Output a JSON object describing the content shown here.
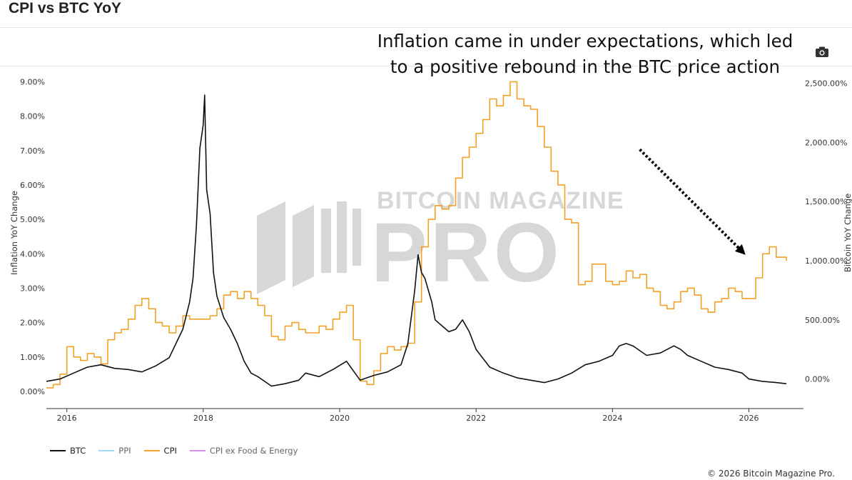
{
  "header": {
    "title": "CPI vs BTC YoY"
  },
  "annotation": {
    "line1": "Inflation came in under expectations, which led",
    "line2": "to a positive rebound in the BTC price action"
  },
  "toolbar": {
    "camera_icon": "camera-icon"
  },
  "watermark": {
    "top": "BITCOIN MAGAZINE",
    "main": "PRO"
  },
  "legend": [
    {
      "name": "BTC",
      "color": "#111111"
    },
    {
      "name": "PPI",
      "color": "#9fd8ef"
    },
    {
      "name": "CPI",
      "color": "#f2a128"
    },
    {
      "name": "CPI ex Food & Energy",
      "color": "#d48ee8"
    }
  ],
  "footer": {
    "copyright": "© 2026 Bitcoin Magazine Pro."
  },
  "chart_data": {
    "type": "line",
    "title": "CPI vs BTC YoY",
    "xlabel": "",
    "ylabel_left": "Inflation YoY Change",
    "ylabel_right": "Bitcoin YoY Change",
    "xlim": [
      2015.7,
      2026.8
    ],
    "x_ticks": [
      2016,
      2018,
      2020,
      2022,
      2024,
      2026
    ],
    "ylim_left": [
      -0.5,
      9.3
    ],
    "y_ticks_left": [
      "0.00%",
      "1.00%",
      "2.00%",
      "3.00%",
      "4.00%",
      "5.00%",
      "6.00%",
      "7.00%",
      "8.00%",
      "9.00%"
    ],
    "y_ticks_left_values": [
      0,
      1,
      2,
      3,
      4,
      5,
      6,
      7,
      8,
      9
    ],
    "ylim_right": [
      -250,
      2600
    ],
    "y_ticks_right": [
      "0.00%",
      "500.00%",
      "1,000.00%",
      "1,500.00%",
      "2,000.00%",
      "2,500.00%"
    ],
    "y_ticks_right_values": [
      0,
      500,
      1000,
      1500,
      2000,
      2500
    ],
    "grid": false,
    "legend_position": "bottom-left",
    "annotation_arrow": {
      "from": [
        2024.4,
        1940
      ],
      "to": [
        2025.95,
        1050
      ]
    },
    "series": [
      {
        "name": "CPI",
        "axis": "left",
        "color": "#f2a128",
        "step": true,
        "x": [
          2015.7,
          2015.8,
          2015.9,
          2016.0,
          2016.1,
          2016.2,
          2016.3,
          2016.4,
          2016.5,
          2016.6,
          2016.7,
          2016.8,
          2016.9,
          2017.0,
          2017.1,
          2017.2,
          2017.3,
          2017.4,
          2017.5,
          2017.6,
          2017.7,
          2017.8,
          2017.9,
          2018.0,
          2018.1,
          2018.2,
          2018.3,
          2018.4,
          2018.5,
          2018.6,
          2018.7,
          2018.8,
          2018.9,
          2019.0,
          2019.1,
          2019.2,
          2019.3,
          2019.4,
          2019.5,
          2019.6,
          2019.7,
          2019.8,
          2019.9,
          2020.0,
          2020.1,
          2020.2,
          2020.3,
          2020.4,
          2020.5,
          2020.6,
          2020.7,
          2020.8,
          2020.9,
          2021.0,
          2021.1,
          2021.2,
          2021.3,
          2021.4,
          2021.5,
          2021.6,
          2021.7,
          2021.8,
          2021.9,
          2022.0,
          2022.1,
          2022.2,
          2022.3,
          2022.4,
          2022.5,
          2022.6,
          2022.7,
          2022.8,
          2022.9,
          2023.0,
          2023.1,
          2023.2,
          2023.3,
          2023.4,
          2023.5,
          2023.6,
          2023.7,
          2023.8,
          2023.9,
          2024.0,
          2024.1,
          2024.2,
          2024.3,
          2024.4,
          2024.5,
          2024.6,
          2024.7,
          2024.8,
          2024.9,
          2025.0,
          2025.1,
          2025.2,
          2025.3,
          2025.4,
          2025.5,
          2025.6,
          2025.7,
          2025.8,
          2025.9,
          2026.0,
          2026.1,
          2026.2,
          2026.3,
          2026.4,
          2026.5,
          2026.55
        ],
        "y": [
          0.1,
          0.2,
          0.5,
          1.3,
          1.0,
          0.9,
          1.1,
          1.0,
          0.8,
          1.5,
          1.7,
          1.8,
          2.1,
          2.5,
          2.7,
          2.4,
          2.0,
          1.9,
          1.7,
          1.9,
          2.2,
          2.1,
          2.1,
          2.1,
          2.2,
          2.4,
          2.8,
          2.9,
          2.7,
          2.9,
          2.7,
          2.5,
          2.2,
          1.6,
          1.5,
          1.9,
          2.0,
          1.8,
          1.7,
          1.7,
          1.9,
          1.8,
          2.1,
          2.3,
          2.5,
          1.5,
          0.3,
          0.2,
          0.6,
          1.1,
          1.3,
          1.2,
          1.3,
          1.4,
          2.6,
          4.2,
          5.0,
          5.4,
          5.3,
          5.4,
          6.2,
          6.8,
          7.1,
          7.5,
          7.9,
          8.5,
          8.3,
          8.6,
          9.0,
          8.5,
          8.3,
          8.2,
          7.7,
          7.1,
          6.4,
          6.0,
          5.0,
          4.9,
          3.1,
          3.2,
          3.7,
          3.7,
          3.2,
          3.1,
          3.2,
          3.5,
          3.3,
          3.4,
          3.0,
          2.9,
          2.5,
          2.4,
          2.6,
          2.9,
          3.0,
          2.8,
          2.4,
          2.3,
          2.6,
          2.7,
          3.0,
          2.9,
          2.7,
          2.7,
          3.3,
          4.0,
          4.2,
          3.9,
          3.9,
          3.8
        ]
      },
      {
        "name": "BTC",
        "axis": "right",
        "color": "#111111",
        "x": [
          2015.7,
          2015.9,
          2016.1,
          2016.3,
          2016.5,
          2016.7,
          2016.9,
          2017.1,
          2017.3,
          2017.5,
          2017.6,
          2017.7,
          2017.8,
          2017.85,
          2017.9,
          2017.95,
          2018.0,
          2018.02,
          2018.05,
          2018.1,
          2018.15,
          2018.2,
          2018.3,
          2018.4,
          2018.5,
          2018.6,
          2018.7,
          2018.8,
          2018.9,
          2019.0,
          2019.2,
          2019.4,
          2019.5,
          2019.7,
          2019.9,
          2020.1,
          2020.3,
          2020.4,
          2020.5,
          2020.7,
          2020.9,
          2021.0,
          2021.1,
          2021.15,
          2021.2,
          2021.25,
          2021.3,
          2021.35,
          2021.4,
          2021.5,
          2021.6,
          2021.7,
          2021.8,
          2021.9,
          2022.0,
          2022.2,
          2022.4,
          2022.6,
          2022.8,
          2023.0,
          2023.2,
          2023.4,
          2023.6,
          2023.8,
          2024.0,
          2024.1,
          2024.2,
          2024.3,
          2024.5,
          2024.7,
          2024.9,
          2025.0,
          2025.1,
          2025.3,
          2025.5,
          2025.7,
          2025.9,
          2026.0,
          2026.2,
          2026.4,
          2026.55
        ],
        "y": [
          -20,
          0,
          50,
          100,
          120,
          90,
          80,
          60,
          110,
          180,
          300,
          420,
          650,
          850,
          1300,
          1950,
          2150,
          2400,
          1600,
          1400,
          900,
          700,
          520,
          420,
          300,
          150,
          50,
          20,
          -20,
          -60,
          -40,
          -10,
          50,
          20,
          80,
          150,
          -10,
          10,
          30,
          60,
          120,
          300,
          750,
          1050,
          900,
          850,
          750,
          650,
          500,
          450,
          400,
          420,
          500,
          400,
          250,
          100,
          50,
          10,
          -10,
          -30,
          0,
          50,
          120,
          150,
          200,
          280,
          300,
          280,
          200,
          220,
          280,
          250,
          200,
          150,
          100,
          80,
          50,
          0,
          -20,
          -30,
          -40
        ]
      },
      {
        "name": "PPI",
        "axis": "left",
        "color": "#9fd8ef",
        "x": [],
        "y": []
      },
      {
        "name": "CPI ex Food & Energy",
        "axis": "left",
        "color": "#d48ee8",
        "x": [],
        "y": []
      }
    ]
  }
}
